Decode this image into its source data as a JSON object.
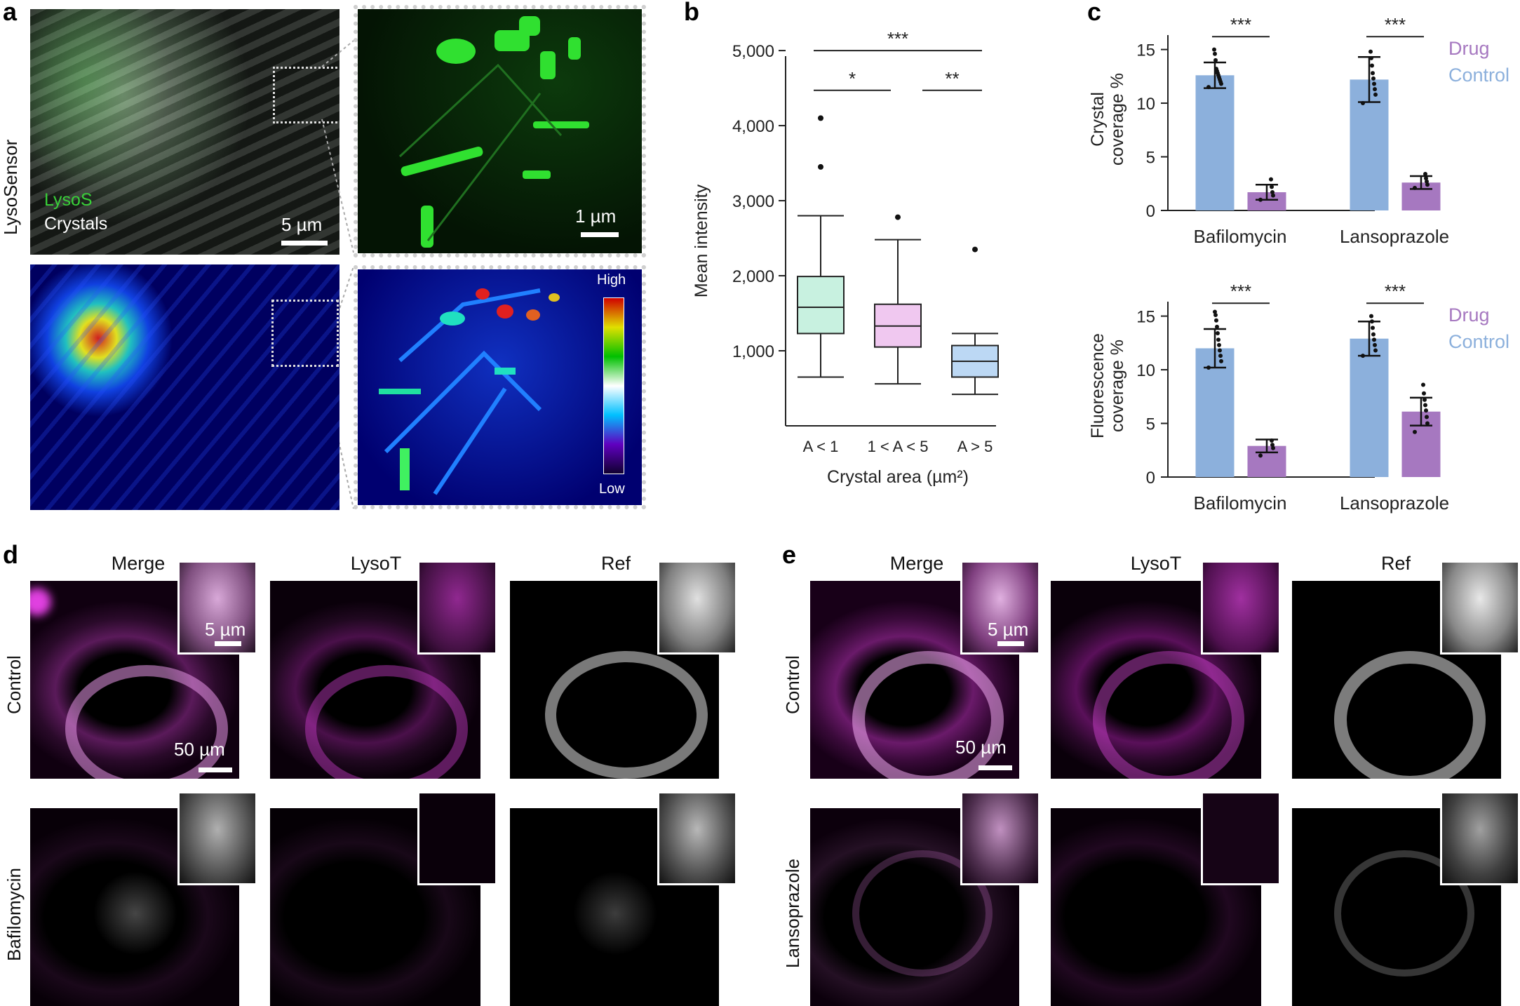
{
  "panels": {
    "a": {
      "letter": "a",
      "side_label": "LysoSensor",
      "legend_lysos": "LysoS",
      "legend_crystals": "Crystals",
      "scale_main": "5 µm",
      "scale_zoom": "1 µm",
      "colorbar_high": "High",
      "colorbar_low": "Low"
    },
    "b": {
      "letter": "b"
    },
    "c": {
      "letter": "c"
    },
    "d": {
      "letter": "d",
      "cols": [
        "Merge",
        "LysoT",
        "Ref"
      ],
      "row_top": "Control",
      "row_bottom": "Bafilomycin",
      "scale_inset": "5 µm",
      "scale_main": "50 µm"
    },
    "e": {
      "letter": "e",
      "cols": [
        "Merge",
        "LysoT",
        "Ref"
      ],
      "row_top": "Control",
      "row_bottom": "Lansoprazole",
      "scale_inset": "5 µm",
      "scale_main": "50 µm"
    }
  },
  "colors": {
    "drug": "#a678c0",
    "control": "#8cb0dc",
    "box1": "#c8f1e0",
    "box2": "#f0c8f0",
    "box3": "#bcd8f4",
    "magenta": "#c83cc8",
    "green": "#30d030"
  },
  "chart_data": [
    {
      "type": "box",
      "panel": "b",
      "categories": [
        "A < 1",
        "1 < A < 5",
        "A > 5"
      ],
      "series": [
        {
          "q1": 1230,
          "median": 1580,
          "q3": 1990,
          "whisker_low": 650,
          "whisker_high": 2800,
          "outliers": [
            3450,
            4100
          ]
        },
        {
          "q1": 1050,
          "median": 1330,
          "q3": 1620,
          "whisker_low": 560,
          "whisker_high": 2480,
          "outliers": [
            2780
          ]
        },
        {
          "q1": 650,
          "median": 860,
          "q3": 1070,
          "whisker_low": 420,
          "whisker_high": 1230,
          "outliers": [
            2350
          ]
        }
      ],
      "ylabel": "Mean intensity",
      "xlabel": "Crystal area (µm²)",
      "yticks": [
        "1,000",
        "2,000",
        "3,000",
        "4,000",
        "5,000"
      ],
      "ytick_values": [
        1000,
        2000,
        3000,
        4000,
        5000
      ],
      "ylim": [
        0,
        5300
      ],
      "significance": [
        {
          "from": 0,
          "to": 2,
          "label": "***",
          "y": 5000
        },
        {
          "from": 0,
          "to": 1,
          "label": "*",
          "y": 4470
        },
        {
          "from": 1,
          "to": 2,
          "label": "**",
          "y": 4470
        }
      ]
    },
    {
      "type": "bar",
      "panel": "c-top",
      "categories": [
        "Bafilomycin",
        "Lansoprazole"
      ],
      "ylabel_line1": "Crystal",
      "ylabel_line2": "coverage %",
      "yticks": [
        0,
        5,
        10,
        15
      ],
      "ylim": [
        0,
        17
      ],
      "legend": [
        "Drug",
        "Control"
      ],
      "series": [
        {
          "name": "Control",
          "values": [
            12.6,
            12.2
          ],
          "err": [
            1.2,
            2.1
          ],
          "points": [
            [
              11.5,
              11.8,
              12.0,
              12.2,
              12.4,
              12.6,
              12.8,
              13.0,
              13.2,
              14.0,
              14.6,
              15.0
            ],
            [
              10.0,
              10.8,
              11.3,
              11.8,
              12.3,
              12.8,
              13.5,
              14.2,
              14.8
            ]
          ]
        },
        {
          "name": "Drug",
          "values": [
            1.7,
            2.6
          ],
          "err": [
            0.7,
            0.6
          ],
          "points": [
            [
              1.0,
              1.4,
              1.7,
              2.2,
              2.9
            ],
            [
              2.1,
              2.4,
              2.7,
              3.0,
              3.4
            ]
          ]
        }
      ],
      "significance": [
        "***",
        "***"
      ]
    },
    {
      "type": "bar",
      "panel": "c-bottom",
      "categories": [
        "Bafilomycin",
        "Lansoprazole"
      ],
      "ylabel_line1": "Fluorescence",
      "ylabel_line2": "coverage %",
      "yticks": [
        0,
        5,
        10,
        15
      ],
      "ylim": [
        0,
        17
      ],
      "legend": [
        "Drug",
        "Control"
      ],
      "series": [
        {
          "name": "Control",
          "values": [
            12.0,
            12.9
          ],
          "err": [
            1.8,
            1.6
          ],
          "points": [
            [
              10.2,
              10.8,
              11.3,
              11.8,
              12.3,
              12.8,
              13.4,
              14.0,
              14.6,
              15.1,
              15.4
            ],
            [
              11.3,
              11.8,
              12.3,
              12.8,
              13.3,
              13.9,
              14.5,
              15.0
            ]
          ]
        },
        {
          "name": "Drug",
          "values": [
            2.9,
            6.1
          ],
          "err": [
            0.6,
            1.3
          ],
          "points": [
            [
              2.0,
              2.7,
              3.0,
              3.4
            ],
            [
              4.2,
              5.0,
              5.6,
              6.2,
              6.7,
              7.2,
              7.8,
              8.6
            ]
          ]
        }
      ],
      "significance": [
        "***",
        "***"
      ]
    }
  ]
}
